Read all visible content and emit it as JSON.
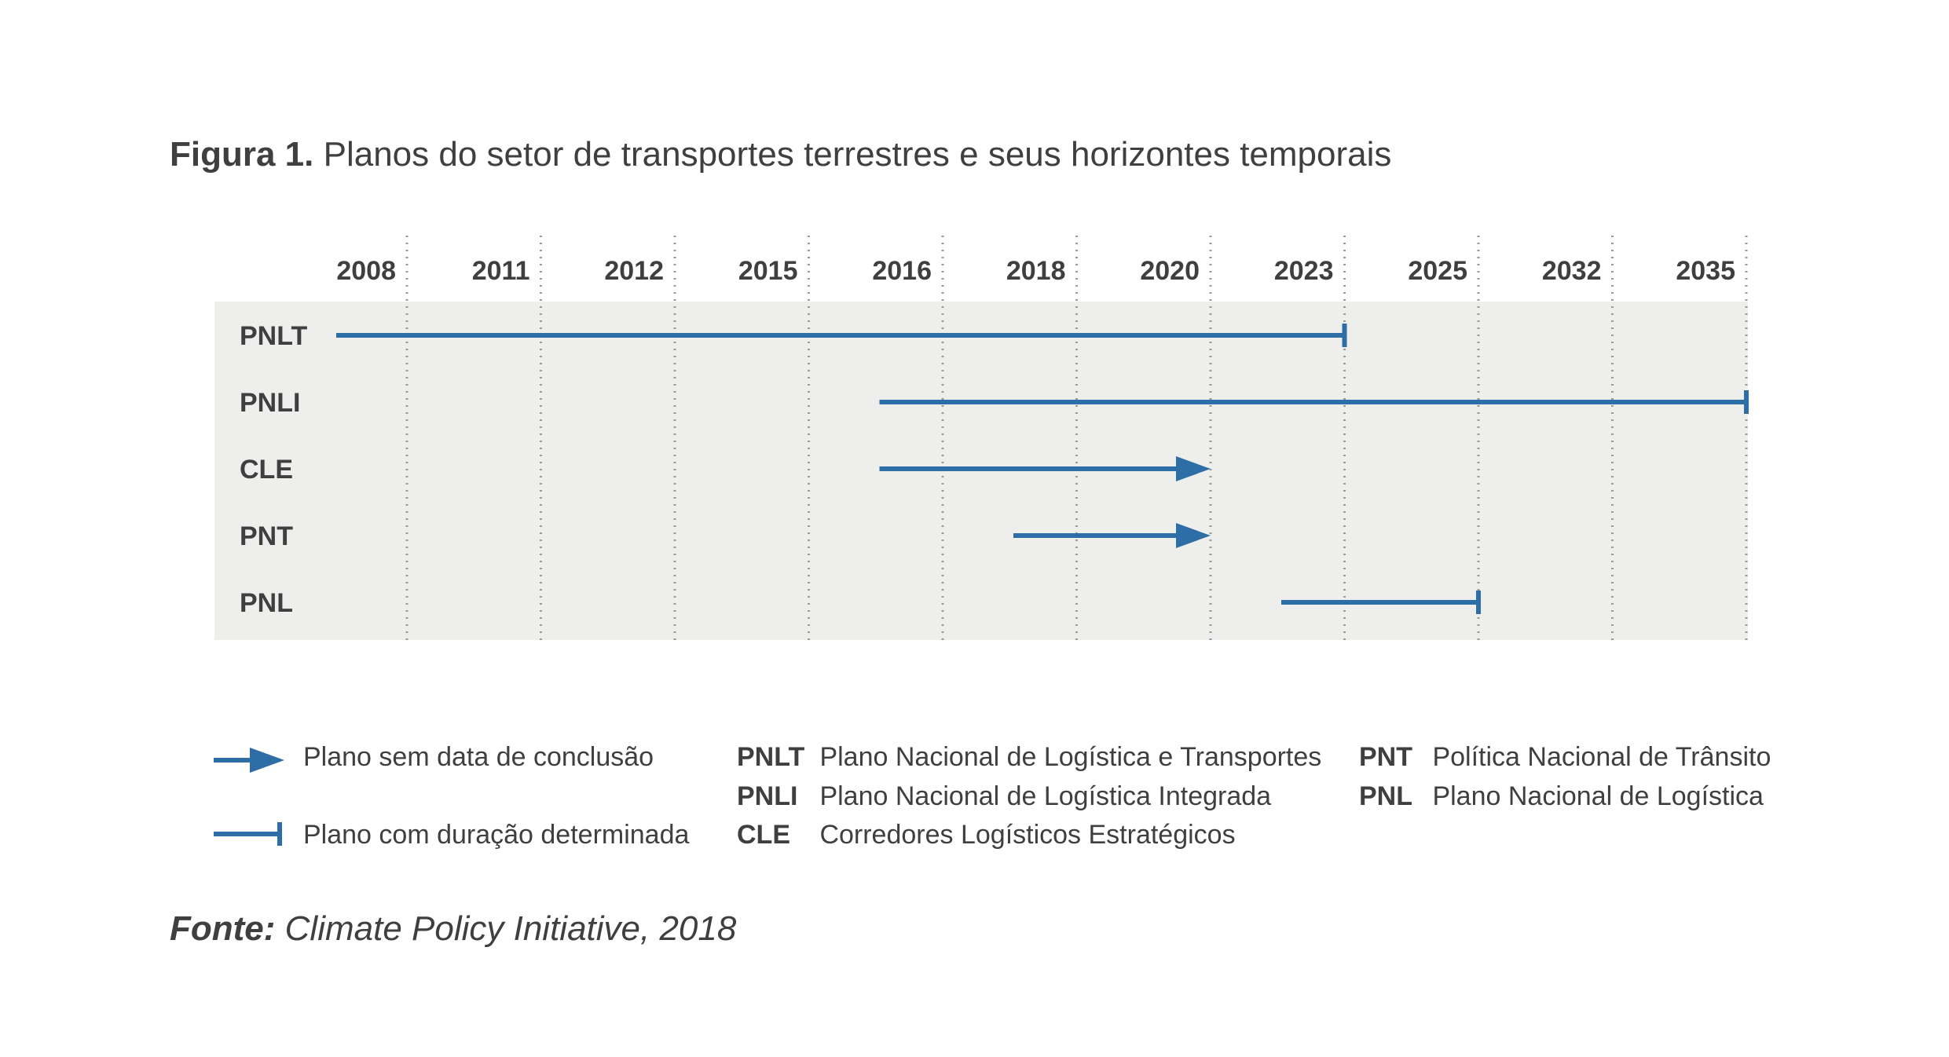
{
  "title": {
    "label": "Figura 1.",
    "text": "Planos do setor de transportes terrestres e seus horizontes temporais"
  },
  "chart_data": {
    "type": "timeline",
    "columns": [
      "2008",
      "2011",
      "2012",
      "2015",
      "2016",
      "2018",
      "2020",
      "2023",
      "2025",
      "2032",
      "2035"
    ],
    "rows": [
      {
        "name": "PNLT",
        "start": "2008",
        "end": "2023",
        "end_style": "bar"
      },
      {
        "name": "PNLI",
        "start": "2016",
        "end": "2035",
        "end_style": "bar"
      },
      {
        "name": "CLE",
        "start": "2016",
        "end": "2020",
        "end_style": "arrow"
      },
      {
        "name": "PNT",
        "start": "2018",
        "end": "2020",
        "end_style": "arrow"
      },
      {
        "name": "PNL",
        "start": "2023",
        "end": "2025",
        "end_style": "bar"
      }
    ],
    "colors": {
      "bar": "#2e6ea6",
      "band": "#eeefed",
      "grid": "#9a9a9a"
    }
  },
  "legend": {
    "arrow_label": "Plano sem data de conclusão",
    "bar_label": "Plano com duração determinada"
  },
  "abbreviations": [
    {
      "abbr": "PNLT",
      "meaning": "Plano Nacional de Logística e Transportes"
    },
    {
      "abbr": "PNLI",
      "meaning": "Plano Nacional de Logística Integrada"
    },
    {
      "abbr": "CLE",
      "meaning": "Corredores Logísticos Estratégicos"
    },
    {
      "abbr": "PNT",
      "meaning": "Política Nacional de Trânsito"
    },
    {
      "abbr": "PNL",
      "meaning": "Plano Nacional de Logística"
    }
  ],
  "source": {
    "label": "Fonte:",
    "text": "Climate Policy Initiative, 2018"
  }
}
